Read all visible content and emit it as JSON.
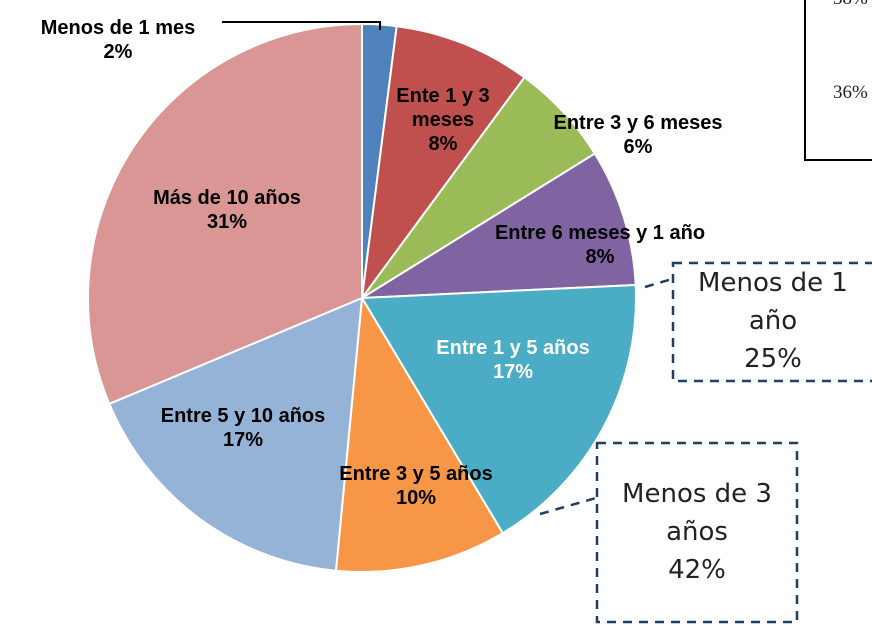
{
  "chart_data": {
    "type": "pie",
    "categories": [
      "Menos de 1 mes",
      "Ente 1 y 3 meses",
      "Entre 3 y 6 meses",
      "Entre 6 meses y 1 año",
      "Entre 1 y 5 años",
      "Entre 3 y 5 años",
      "Entre 5 y 10 años",
      "Más de 10 años"
    ],
    "values": [
      2,
      8,
      6,
      8,
      17,
      10,
      17,
      31
    ],
    "value_labels": [
      "2%",
      "8%",
      "6%",
      "8%",
      "17%",
      "10%",
      "17%",
      "31%"
    ],
    "colors": [
      "#4f81bd",
      "#c0504d",
      "#9bbb59",
      "#8064a2",
      "#4bacc6",
      "#f79646",
      "#95b3d7",
      "#d99694"
    ],
    "annotations": [
      {
        "label": "Menos de 1 año",
        "value_label": "25%"
      },
      {
        "label": "Menos de 3 años",
        "value_label": "42%"
      },
      {
        "label": "38%"
      },
      {
        "label": "36%"
      }
    ]
  }
}
